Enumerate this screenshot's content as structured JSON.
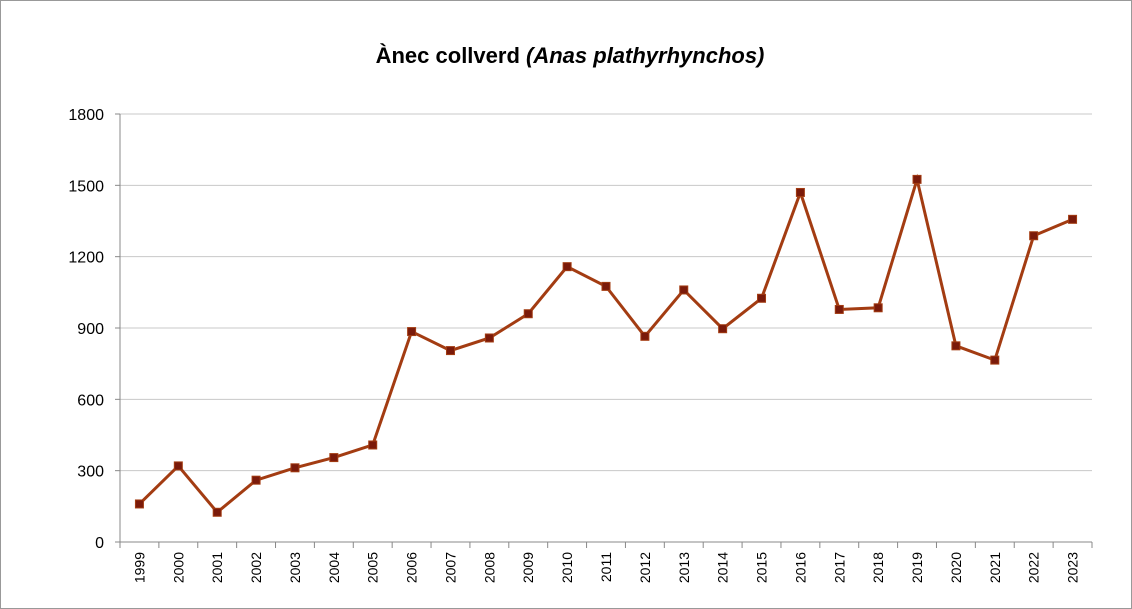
{
  "chart_data": {
    "type": "line",
    "title": [
      "Ànec collverd",
      "(Anas plathyrhynchos)"
    ],
    "categories": [
      "1999",
      "2000",
      "2001",
      "2002",
      "2003",
      "2004",
      "2005",
      "2006",
      "2007",
      "2008",
      "2009",
      "2010",
      "2011",
      "2012",
      "2013",
      "2014",
      "2015",
      "2016",
      "2017",
      "2018",
      "2019",
      "2020",
      "2021",
      "2022",
      "2023"
    ],
    "series": [
      {
        "color": "#a33c12",
        "marker_color": "#7a1a0a",
        "values": [
          160,
          320,
          125,
          260,
          312,
          355,
          408,
          885,
          805,
          858,
          960,
          1158,
          1075,
          865,
          1060,
          897,
          1025,
          1470,
          978,
          985,
          1525,
          825,
          765,
          1288,
          1357
        ]
      }
    ],
    "ylim": [
      0,
      1800
    ],
    "yticks": [
      0,
      300,
      600,
      900,
      1200,
      1500,
      1800
    ],
    "grid": true
  }
}
